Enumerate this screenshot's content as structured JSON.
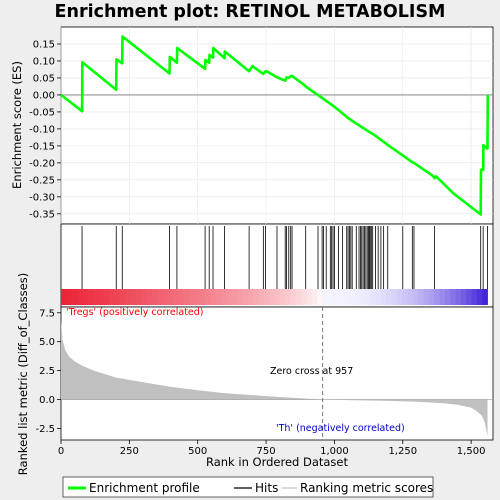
{
  "chart_data": {
    "type": "line",
    "title": "Enrichment plot: RETINOL METABOLISM",
    "enrichment_panel": {
      "ylabel": "Enrichment score (ES)",
      "ylim": [
        -0.38,
        0.2
      ],
      "yticks": [
        0.15,
        0.1,
        0.05,
        0.0,
        -0.05,
        -0.1,
        -0.15,
        -0.2,
        -0.25,
        -0.3,
        -0.35
      ],
      "ytick_labels": [
        "0.15",
        "0.10",
        "0.05",
        "0.00",
        "-0.05",
        "-0.10",
        "-0.15",
        "-0.20",
        "-0.25",
        "-0.30",
        "-0.35"
      ],
      "line_color": "#00ff00",
      "series": [
        {
          "x": [
            0,
            77,
            78,
            202,
            203,
            224,
            225,
            397,
            398,
            424,
            425,
            527,
            528,
            542,
            543,
            556,
            557,
            598,
            599,
            688,
            700,
            740,
            748,
            755,
            790,
            820,
            825,
            833,
            840,
            845,
            880,
            900,
            957,
            1000,
            1050,
            1100,
            1150,
            1200,
            1250,
            1285,
            1291,
            1300,
            1360,
            1366,
            1372,
            1400,
            1435,
            1535,
            1536,
            1544,
            1545,
            1560,
            1561
          ],
          "y": [
            0.0,
            -0.048,
            0.096,
            0.015,
            0.105,
            0.093,
            0.172,
            0.063,
            0.112,
            0.095,
            0.138,
            0.077,
            0.103,
            0.095,
            0.118,
            0.11,
            0.138,
            0.108,
            0.128,
            0.07,
            0.085,
            0.062,
            0.07,
            0.068,
            0.052,
            0.042,
            0.052,
            0.05,
            0.055,
            0.056,
            0.035,
            0.022,
            -0.01,
            -0.035,
            -0.068,
            -0.095,
            -0.12,
            -0.15,
            -0.178,
            -0.198,
            -0.2,
            -0.205,
            -0.238,
            -0.245,
            -0.24,
            -0.262,
            -0.29,
            -0.352,
            -0.22,
            -0.22,
            -0.148,
            -0.158,
            0.0
          ]
        }
      ]
    },
    "hits_panel": {
      "hit_ranks": [
        77,
        202,
        224,
        397,
        424,
        527,
        542,
        556,
        598,
        688,
        740,
        748,
        790,
        820,
        825,
        833,
        840,
        845,
        895,
        940,
        955,
        960,
        970,
        985,
        990,
        995,
        1000,
        1015,
        1030,
        1045,
        1050,
        1055,
        1060,
        1065,
        1080,
        1090,
        1095,
        1100,
        1105,
        1110,
        1115,
        1120,
        1125,
        1128,
        1131,
        1135,
        1140,
        1150,
        1160,
        1170,
        1180,
        1195,
        1250,
        1285,
        1291,
        1366,
        1535,
        1544,
        1560
      ]
    },
    "ranking_panel": {
      "ylabel": "Ranked list metric (Diff_of_Classes)",
      "xlabel": "Rank in Ordered Dataset",
      "xlim": [
        0,
        1580
      ],
      "ylim": [
        -3.5,
        8.0
      ],
      "yticks": [
        7.5,
        5.0,
        2.5,
        0.0,
        -2.5
      ],
      "ytick_labels": [
        "7.5",
        "5.0",
        "2.5",
        "0.0",
        "-2.5"
      ],
      "xticks": [
        0,
        250,
        500,
        750,
        1000,
        1250,
        1500
      ],
      "xtick_labels": [
        "0",
        "250",
        "500",
        "750",
        "1,000",
        "1,250",
        "1,500"
      ],
      "zero_cross": 957,
      "zero_cross_label": "Zero cross at 957",
      "pos_label": "'Tregs' (positively correlated)",
      "neg_label": "'Th' (negatively correlated)",
      "pos_color": "#ff0000",
      "neg_color": "#0000cc",
      "fill_color": "#c0c0c0",
      "metric_profile": {
        "rank": [
          0,
          5,
          15,
          30,
          50,
          80,
          120,
          200,
          300,
          400,
          500,
          600,
          700,
          800,
          900,
          957,
          1050,
          1200,
          1300,
          1400,
          1450,
          1500,
          1520,
          1540,
          1550,
          1560
        ],
        "value": [
          6.9,
          5.2,
          4.3,
          3.7,
          3.3,
          2.9,
          2.5,
          1.9,
          1.5,
          1.1,
          0.8,
          0.55,
          0.38,
          0.22,
          0.08,
          0.0,
          -0.05,
          -0.12,
          -0.2,
          -0.32,
          -0.45,
          -0.7,
          -1.0,
          -1.4,
          -2.0,
          -3.2
        ]
      }
    },
    "legend": {
      "items": [
        {
          "label": "Enrichment profile",
          "color": "#00ff00"
        },
        {
          "label": "Hits",
          "color": "#000000"
        },
        {
          "label": "Ranking metric scores",
          "color": "#c0c0c0"
        }
      ]
    }
  }
}
